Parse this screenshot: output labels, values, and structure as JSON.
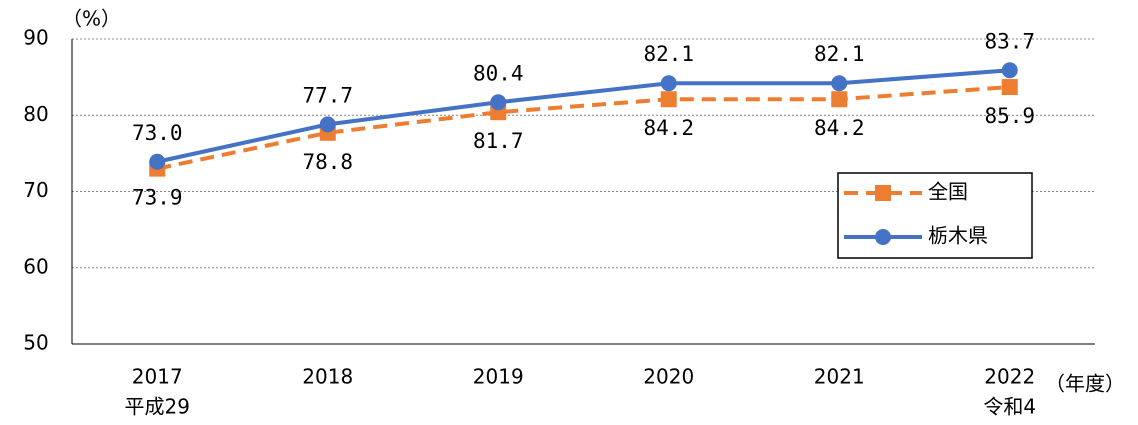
{
  "chart_data": {
    "type": "line",
    "y_label": "（%）",
    "x_label": "（年度）",
    "categories": [
      "2017",
      "2018",
      "2019",
      "2020",
      "2021",
      "2022"
    ],
    "era_labels": [
      "平成29",
      null,
      null,
      null,
      null,
      "令和4"
    ],
    "series": [
      {
        "name": "全国",
        "color": "#ed7d31",
        "dashed": true,
        "marker": "square",
        "values": [
          73.0,
          77.7,
          80.4,
          82.1,
          82.1,
          83.7
        ],
        "value_labels": [
          "73.0",
          "77.7",
          "80.4",
          "82.1",
          "82.1",
          "83.7"
        ]
      },
      {
        "name": "栃木県",
        "color": "#4472c4",
        "dashed": false,
        "marker": "circle",
        "values": [
          73.9,
          78.8,
          81.7,
          84.2,
          84.2,
          85.9
        ],
        "value_labels": [
          "73.9",
          "78.8",
          "81.7",
          "84.2",
          "84.2",
          "85.9"
        ]
      }
    ],
    "ylim": [
      50,
      90
    ],
    "yticks": [
      50,
      60,
      70,
      80,
      90
    ],
    "grid": true,
    "legend": "right"
  }
}
